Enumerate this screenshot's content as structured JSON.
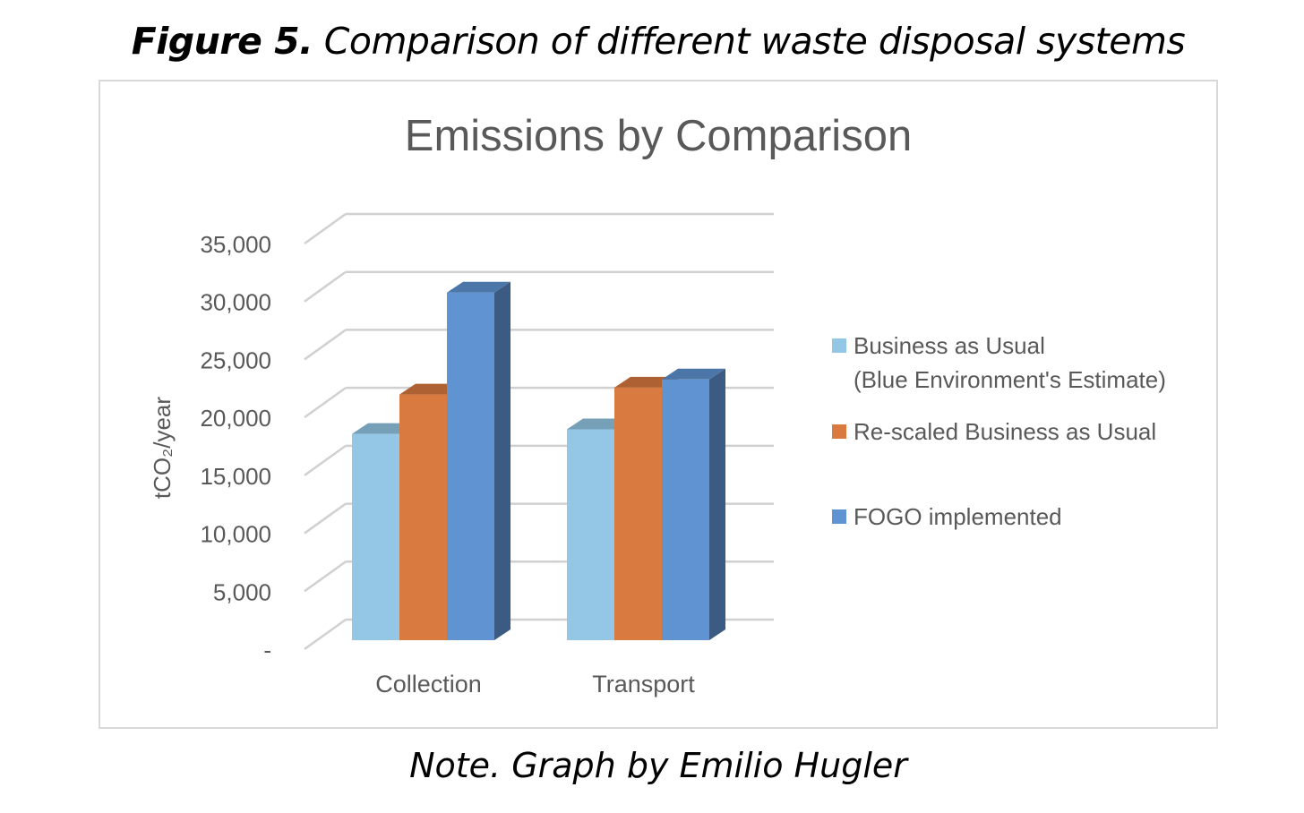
{
  "figure": {
    "label": "Figure 5.",
    "caption": "Comparison of different waste disposal systems",
    "note": "Note. Graph by Emilio Hugler"
  },
  "chart_data": {
    "type": "bar",
    "style": "3d-clustered-column",
    "title": "Emissions by Comparison",
    "xlabel": "",
    "ylabel": "tCO₂/year",
    "ylim": [
      0,
      35000
    ],
    "y_ticks": [
      0,
      5000,
      10000,
      15000,
      20000,
      25000,
      30000,
      35000
    ],
    "y_tick_labels": [
      "-",
      "5,000",
      "10,000",
      "15,000",
      "20,000",
      "25,000",
      "30,000",
      "35,000"
    ],
    "categories": [
      "Collection",
      "Transport"
    ],
    "series": [
      {
        "name": "Business as Usual (Blue Environment's Estimate)",
        "legend_lines": [
          "Business as Usual",
          "(Blue Environment's Estimate)"
        ],
        "values": [
          17800,
          18200
        ],
        "color": "#94c7e6"
      },
      {
        "name": "Re-scaled Business as Usual",
        "legend_lines": [
          "Re-scaled Business as Usual"
        ],
        "values": [
          21200,
          21800
        ],
        "color": "#d97a40"
      },
      {
        "name": "FOGO implemented",
        "legend_lines": [
          "FOGO implemented"
        ],
        "values": [
          30000,
          22500
        ],
        "color": "#5f93d2"
      }
    ],
    "legend_position": "right",
    "grid": true
  }
}
